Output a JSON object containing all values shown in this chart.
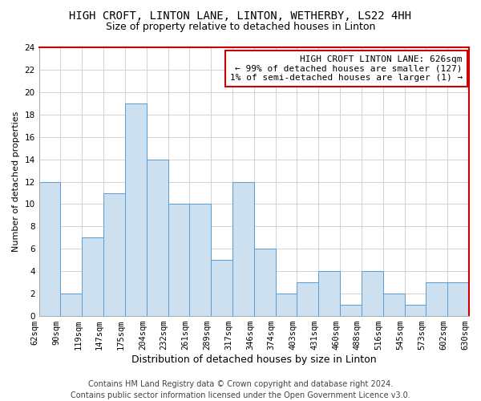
{
  "title1": "HIGH CROFT, LINTON LANE, LINTON, WETHERBY, LS22 4HH",
  "title2": "Size of property relative to detached houses in Linton",
  "xlabel": "Distribution of detached houses by size in Linton",
  "ylabel": "Number of detached properties",
  "bar_values": [
    12,
    2,
    7,
    11,
    19,
    14,
    10,
    10,
    5,
    12,
    6,
    2,
    3,
    4,
    1,
    4,
    2,
    1,
    3,
    3
  ],
  "bar_labels": [
    "62sqm",
    "90sqm",
    "119sqm",
    "147sqm",
    "175sqm",
    "204sqm",
    "232sqm",
    "261sqm",
    "289sqm",
    "317sqm",
    "346sqm",
    "374sqm",
    "403sqm",
    "431sqm",
    "460sqm",
    "488sqm",
    "516sqm",
    "545sqm",
    "573sqm",
    "602sqm",
    "630sqm"
  ],
  "bar_color": "#cce0f0",
  "bar_edge_color": "#5b9bd5",
  "grid_color": "#cccccc",
  "annotation_text": "HIGH CROFT LINTON LANE: 626sqm\n← 99% of detached houses are smaller (127)\n1% of semi-detached houses are larger (1) →",
  "annotation_box_edge": "#cc0000",
  "red_border_color": "#cc0000",
  "ylim": [
    0,
    24
  ],
  "yticks": [
    0,
    2,
    4,
    6,
    8,
    10,
    12,
    14,
    16,
    18,
    20,
    22,
    24
  ],
  "footnote": "Contains HM Land Registry data © Crown copyright and database right 2024.\nContains public sector information licensed under the Open Government Licence v3.0.",
  "footnote_fontsize": 7,
  "title1_fontsize": 10,
  "title2_fontsize": 9,
  "xlabel_fontsize": 9,
  "ylabel_fontsize": 8,
  "tick_fontsize": 7.5,
  "annotation_fontsize": 8
}
